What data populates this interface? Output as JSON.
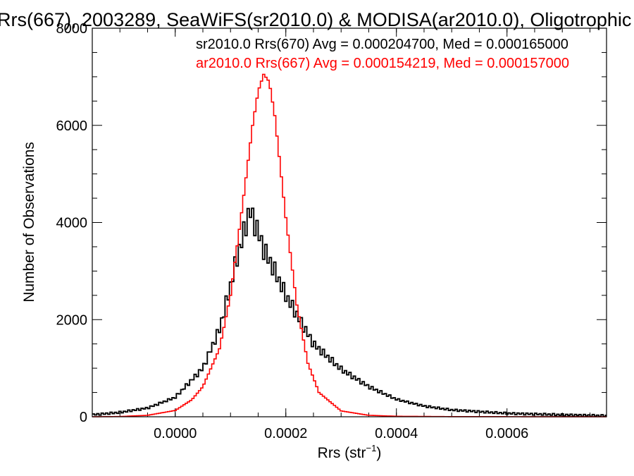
{
  "chart_data": {
    "type": "line",
    "title": "Rrs(667), 2003289, SeaWiFS(sr2010.0) & MODISA(ar2010.0), Oligotrophic",
    "xlabel": "Rrs (str",
    "xlabel_sup": "−1",
    "xlabel_close": ")",
    "ylabel": "Number of Observations",
    "xlim": [
      -0.00015,
      0.00078
    ],
    "ylim": [
      0,
      8000
    ],
    "xticks": [
      0.0,
      0.0002,
      0.0004,
      0.0006
    ],
    "xtick_labels": [
      "0.0000",
      "0.0002",
      "0.0004",
      "0.0006"
    ],
    "yticks": [
      0,
      2000,
      4000,
      6000,
      8000
    ],
    "ytick_labels": [
      "0",
      "2000",
      "4000",
      "6000",
      "8000"
    ],
    "bin_width": 4e-06,
    "grid": false,
    "legend_placement": "top-right",
    "series": [
      {
        "name": "sr2010.0 Rrs(670)",
        "legend": "sr2010.0 Rrs(670) Avg = 0.000204700, Med = 0.000165000",
        "color": "#000000",
        "style": "step-jagged",
        "x": [
          -0.00015,
          -0.0001,
          -5e-05,
          0.0,
          5e-05,
          8e-05,
          0.0001,
          0.00011,
          0.00012,
          0.000125,
          0.00013,
          0.000135,
          0.00014,
          0.00015,
          0.00016,
          0.00018,
          0.0002,
          0.00025,
          0.0003,
          0.00035,
          0.0004,
          0.00045,
          0.0005,
          0.0006,
          0.0007,
          0.00078
        ],
        "y": [
          40,
          90,
          180,
          400,
          1000,
          1800,
          2700,
          3200,
          3600,
          3850,
          4050,
          4250,
          4100,
          3800,
          3450,
          3000,
          2500,
          1500,
          980,
          620,
          360,
          220,
          140,
          70,
          40,
          20
        ]
      },
      {
        "name": "ar2010.0 Rrs(667)",
        "legend": "ar2010.0 Rrs(667) Avg = 0.000154219, Med = 0.000157000",
        "color": "#ff0000",
        "style": "step",
        "x": [
          -0.00015,
          -0.0001,
          -5e-05,
          0.0,
          3e-05,
          5e-05,
          8e-05,
          0.0001,
          0.00012,
          0.00013,
          0.00014,
          0.00015,
          0.00016,
          0.00017,
          0.00018,
          0.0002,
          0.00022,
          0.00024,
          0.00026,
          0.0003,
          0.00035,
          0.0004,
          0.0005,
          0.00078
        ],
        "y": [
          0,
          5,
          30,
          130,
          350,
          620,
          1400,
          2500,
          4200,
          5100,
          6000,
          6700,
          7050,
          6900,
          6200,
          4100,
          2300,
          1100,
          500,
          120,
          30,
          10,
          3,
          0
        ]
      }
    ]
  }
}
